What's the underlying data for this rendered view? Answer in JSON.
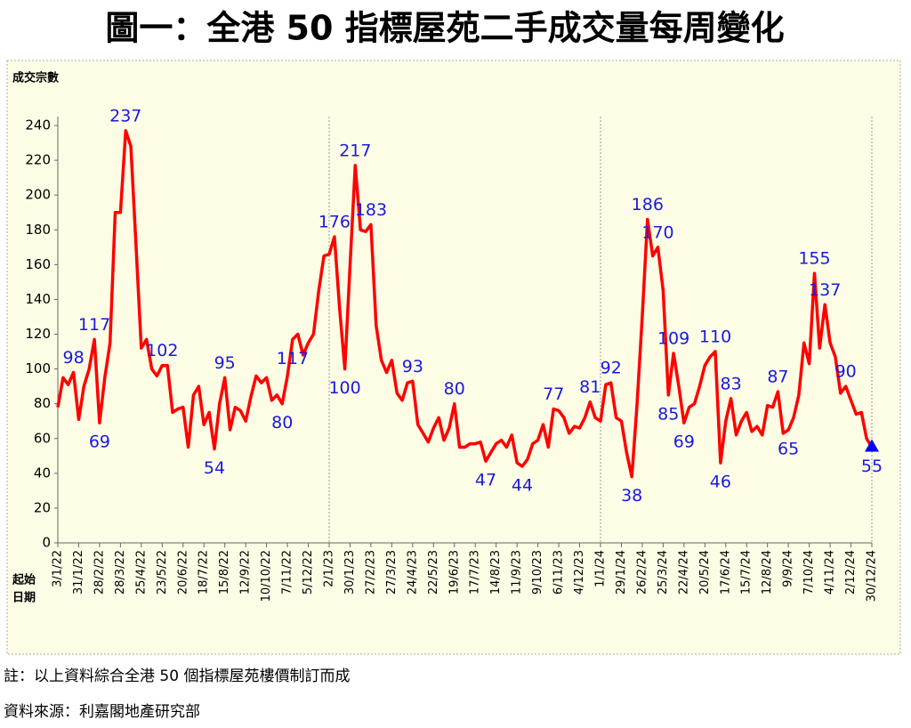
{
  "chart_data": {
    "type": "line",
    "title": "圖一：全港 50 指標屋苑二手成交量每周變化",
    "y_label": "成交宗數",
    "x_label": "起始日期",
    "notes": [
      "註：以上資料綜合全港 50 個指標屋苑樓價制訂而成",
      "資料來源：利嘉閣地產研究部"
    ],
    "color": "#ff0000",
    "ylim": [
      0,
      240
    ],
    "yticks": [
      0,
      20,
      40,
      60,
      80,
      100,
      120,
      140,
      160,
      180,
      200,
      220,
      240
    ],
    "categories": [
      "3/1/22",
      null,
      null,
      null,
      "31/1/22",
      null,
      null,
      null,
      "28/2/22",
      null,
      null,
      null,
      "28/3/22",
      null,
      null,
      null,
      "25/4/22",
      null,
      null,
      null,
      "23/5/22",
      null,
      null,
      null,
      "20/6/22",
      null,
      null,
      null,
      "18/7/22",
      null,
      null,
      null,
      "15/8/22",
      null,
      null,
      null,
      "12/9/22",
      null,
      null,
      null,
      "10/10/22",
      null,
      null,
      null,
      "7/11/22",
      null,
      null,
      null,
      "5/12/22",
      null,
      null,
      null,
      "2/1/23",
      null,
      null,
      null,
      "30/1/23",
      null,
      null,
      null,
      "27/2/23",
      null,
      null,
      null,
      "27/3/23",
      null,
      null,
      null,
      "24/4/23",
      null,
      null,
      null,
      "22/5/23",
      null,
      null,
      null,
      "19/6/23",
      null,
      null,
      null,
      "17/7/23",
      null,
      null,
      null,
      "14/8/23",
      null,
      null,
      null,
      "11/9/23",
      null,
      null,
      null,
      "9/10/23",
      null,
      null,
      null,
      "6/11/23",
      null,
      null,
      null,
      "4/12/23",
      null,
      null,
      null,
      "1/1/24",
      null,
      null,
      null,
      "29/1/24",
      null,
      null,
      null,
      "26/2/24",
      null,
      null,
      null,
      "25/3/24",
      null,
      null,
      null,
      "22/4/24",
      null,
      null,
      null,
      "20/5/24",
      null,
      null,
      null,
      "17/6/24",
      null,
      null,
      null,
      "15/7/24",
      null,
      null,
      null,
      "12/8/24",
      null,
      null,
      null,
      "9/9/24",
      null,
      null,
      null,
      "7/10/24",
      null,
      null,
      null,
      "4/11/24",
      null,
      null,
      null,
      "2/12/24",
      null,
      null,
      null,
      "30/12/24"
    ],
    "values": [
      78,
      95,
      91,
      98,
      71,
      90,
      100,
      117,
      69,
      95,
      115,
      190,
      190,
      237,
      228,
      170,
      112,
      117,
      100,
      96,
      102,
      102,
      75,
      77,
      78,
      55,
      85,
      90,
      68,
      75,
      54,
      80,
      95,
      65,
      78,
      76,
      70,
      84,
      96,
      92,
      95,
      82,
      85,
      80,
      96,
      117,
      120,
      108,
      115,
      120,
      145,
      165,
      166,
      176,
      135,
      100,
      160,
      217,
      180,
      179,
      183,
      125,
      105,
      98,
      105,
      86,
      82,
      92,
      93,
      68,
      63,
      58,
      66,
      72,
      59,
      66,
      80,
      55,
      55,
      57,
      57,
      58,
      47,
      52,
      57,
      59,
      55,
      62,
      46,
      44,
      48,
      57,
      59,
      68,
      55,
      77,
      76,
      72,
      63,
      67,
      66,
      72,
      81,
      72,
      70,
      91,
      92,
      72,
      70,
      52,
      38,
      80,
      130,
      186,
      165,
      170,
      145,
      85,
      109,
      90,
      69,
      78,
      80,
      90,
      102,
      107,
      110,
      46,
      70,
      83,
      62,
      70,
      75,
      64,
      67,
      62,
      79,
      78,
      87,
      63,
      65,
      72,
      85,
      115,
      103,
      155,
      112,
      137,
      115,
      107,
      86,
      90,
      82,
      74,
      75,
      60,
      55
    ],
    "value_labels": [
      null,
      null,
      null,
      "98",
      null,
      null,
      null,
      "117",
      "69",
      null,
      null,
      null,
      null,
      "237",
      null,
      null,
      null,
      null,
      null,
      null,
      "102",
      null,
      null,
      null,
      null,
      null,
      null,
      null,
      null,
      null,
      "54",
      null,
      "95",
      null,
      null,
      null,
      null,
      null,
      null,
      null,
      null,
      null,
      null,
      "80",
      null,
      "117",
      null,
      null,
      null,
      null,
      null,
      null,
      null,
      "176",
      null,
      "100",
      null,
      "217",
      null,
      null,
      "183",
      null,
      null,
      null,
      null,
      null,
      null,
      null,
      "93",
      null,
      null,
      null,
      null,
      null,
      null,
      null,
      "80",
      null,
      null,
      null,
      null,
      null,
      "47",
      null,
      null,
      null,
      null,
      null,
      null,
      "44",
      null,
      null,
      null,
      null,
      null,
      "77",
      null,
      null,
      null,
      null,
      null,
      null,
      "81",
      null,
      null,
      null,
      "92",
      null,
      null,
      null,
      "38",
      null,
      null,
      "186",
      null,
      "170",
      null,
      "85",
      "109",
      null,
      "69",
      null,
      null,
      null,
      null,
      null,
      "110",
      "46",
      null,
      "83",
      null,
      null,
      null,
      null,
      null,
      null,
      null,
      null,
      "87",
      null,
      "65",
      null,
      null,
      null,
      null,
      "155",
      null,
      "137",
      null,
      null,
      null,
      "90",
      null,
      null,
      null,
      null,
      "55"
    ]
  }
}
